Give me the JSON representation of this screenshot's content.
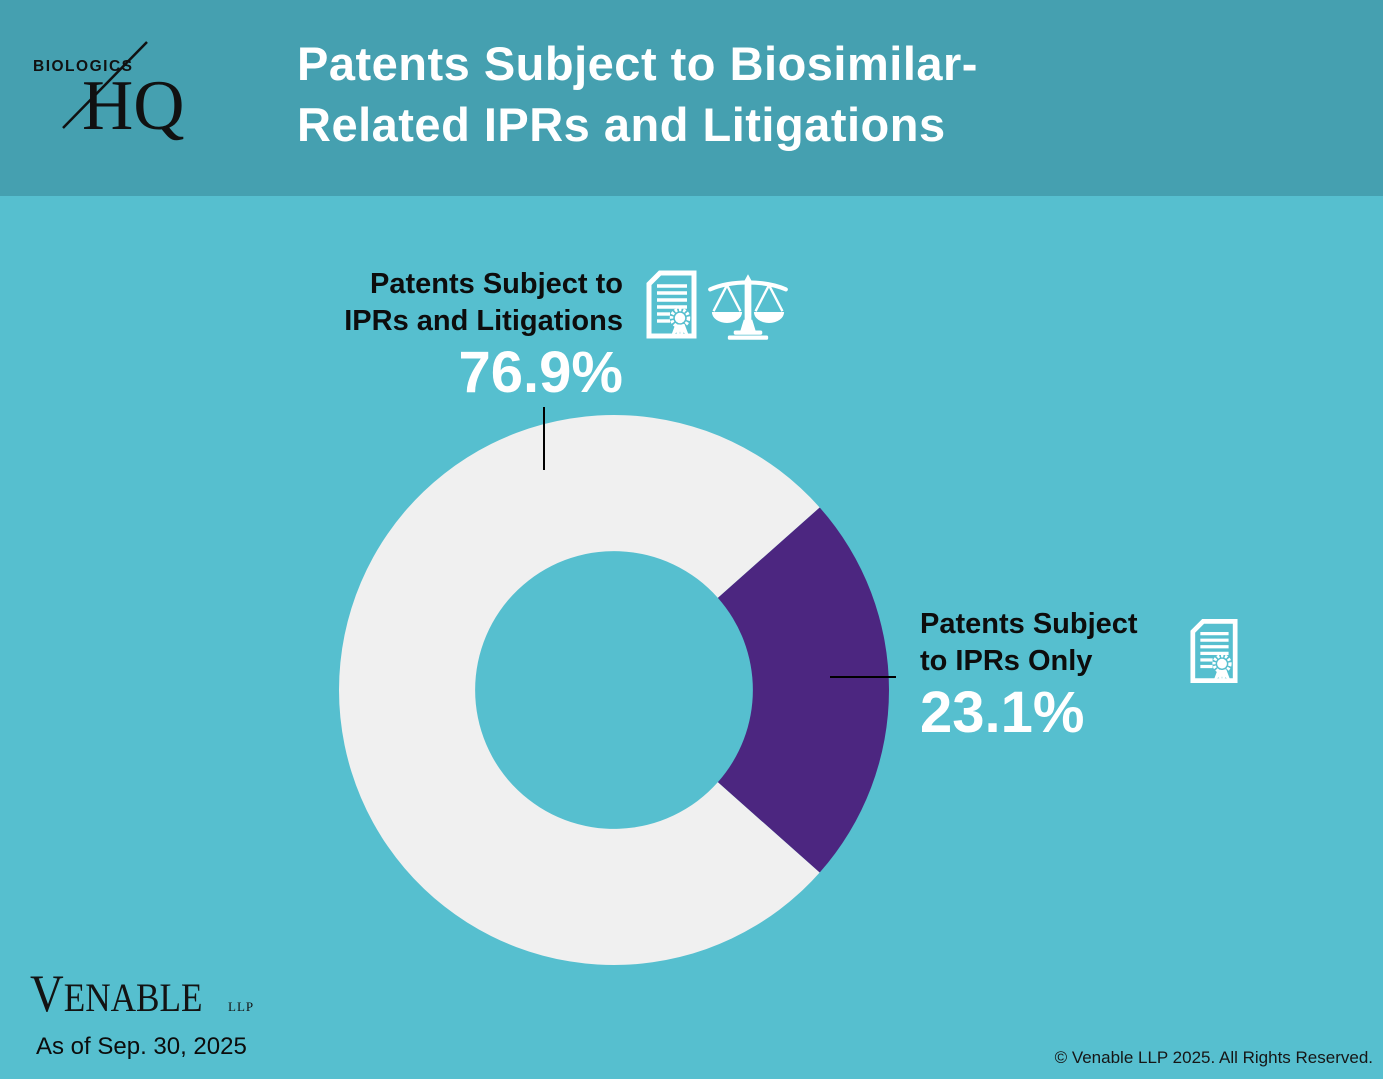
{
  "header": {
    "logo_top": "BIOLOGICS",
    "logo_bottom": "HQ",
    "title_line1": "Patents Subject to Biosimilar-",
    "title_line2": "Related IPRs and Litigations"
  },
  "colors": {
    "header_bg": "#45a0b0",
    "page_bg": "#56bfcf",
    "slice_main": "#f0f0f0",
    "slice_secondary": "#4c2680",
    "label_text": "#0d0d0d",
    "percent_text": "#ffffff",
    "title_text": "#ffffff"
  },
  "chart_data": {
    "type": "pie",
    "subtype": "donut",
    "title": "Patents Subject to Biosimilar-Related IPRs and Litigations",
    "unit": "%",
    "slices": [
      {
        "label": "Patents Subject to IPRs and Litigations",
        "value": 76.9,
        "color": "#f0f0f0"
      },
      {
        "label": "Patents Subject to IPRs Only",
        "value": 23.1,
        "color": "#4c2680"
      }
    ],
    "layout": {
      "inner_radius_ratio": 0.505,
      "secondary_slice_center_deg_clockwise_from_top": 90,
      "legend": "none",
      "labels": "outside callouts with black leader lines"
    }
  },
  "callouts": {
    "left": {
      "line1": "Patents Subject to",
      "line2": "IPRs and Litigations",
      "value": "76.9%",
      "icons": [
        "certificate-icon",
        "scales-icon"
      ]
    },
    "right": {
      "line1": "Patents Subject",
      "line2": "to IPRs Only",
      "value": "23.1%",
      "icons": [
        "certificate-icon"
      ]
    }
  },
  "footer": {
    "brand": "VENABLE",
    "brand_suffix": "LLP",
    "as_of": "As of Sep. 30, 2025",
    "copyright": "© Venable LLP 2025. All Rights Reserved."
  }
}
